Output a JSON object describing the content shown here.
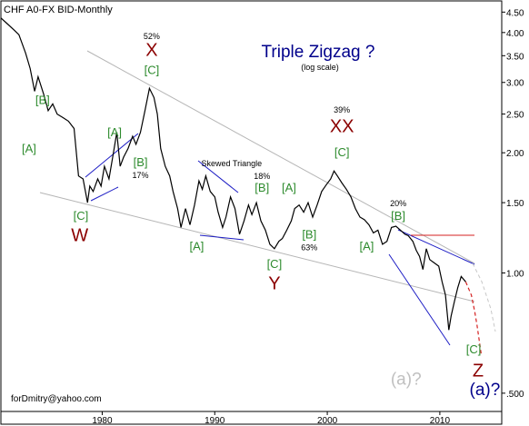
{
  "chart_data": {
    "type": "line",
    "header": "CHF A0-FX BID-Monthly",
    "title": "Triple Zigzag ?",
    "subtitle": "(log scale)",
    "footer": "forDmitry@yahoo.com",
    "y_scale": "log",
    "ylim": [
      0.45,
      4.8
    ],
    "xlim": [
      1971.0,
      2015.5
    ],
    "y_ticks": [
      {
        "v": 4.5,
        "label": "4.50"
      },
      {
        "v": 4.0,
        "label": "4.00"
      },
      {
        "v": 3.5,
        "label": "3.50"
      },
      {
        "v": 3.0,
        "label": "3.00"
      },
      {
        "v": 2.5,
        "label": "2.50"
      },
      {
        "v": 2.0,
        "label": "2.00"
      },
      {
        "v": 1.5,
        "label": "1.50"
      },
      {
        "v": 1.0,
        "label": "1.00"
      },
      {
        "v": 0.5,
        "label": ".500"
      }
    ],
    "x_ticks": [
      {
        "v": 1980,
        "label": "1980"
      },
      {
        "v": 1990,
        "label": "1990"
      },
      {
        "v": 2000,
        "label": "2000"
      },
      {
        "v": 2010,
        "label": "2010"
      }
    ],
    "series": [
      {
        "color": "#000000",
        "points": [
          [
            1971.0,
            4.35
          ],
          [
            1971.6,
            4.2
          ],
          [
            1972.2,
            4.05
          ],
          [
            1972.6,
            3.95
          ],
          [
            1973.2,
            3.55
          ],
          [
            1973.6,
            3.25
          ],
          [
            1974.0,
            2.85
          ],
          [
            1974.3,
            3.1
          ],
          [
            1974.8,
            2.8
          ],
          [
            1975.2,
            2.55
          ],
          [
            1975.6,
            2.65
          ],
          [
            1976.0,
            2.5
          ],
          [
            1976.5,
            2.45
          ],
          [
            1977.0,
            2.4
          ],
          [
            1977.5,
            2.3
          ],
          [
            1977.9,
            1.75
          ],
          [
            1978.3,
            1.72
          ],
          [
            1978.7,
            1.5
          ],
          [
            1978.9,
            1.65
          ],
          [
            1979.2,
            1.6
          ],
          [
            1979.6,
            1.72
          ],
          [
            1979.9,
            1.65
          ],
          [
            1980.2,
            1.85
          ],
          [
            1980.6,
            1.72
          ],
          [
            1981.0,
            2.0
          ],
          [
            1981.3,
            2.25
          ],
          [
            1981.6,
            1.85
          ],
          [
            1981.9,
            1.95
          ],
          [
            1982.3,
            2.05
          ],
          [
            1982.7,
            2.2
          ],
          [
            1983.0,
            2.1
          ],
          [
            1983.4,
            2.25
          ],
          [
            1983.8,
            2.55
          ],
          [
            1984.2,
            2.9
          ],
          [
            1984.6,
            2.75
          ],
          [
            1984.9,
            2.5
          ],
          [
            1985.2,
            2.05
          ],
          [
            1985.6,
            1.85
          ],
          [
            1986.0,
            1.75
          ],
          [
            1986.3,
            1.6
          ],
          [
            1986.7,
            1.45
          ],
          [
            1987.0,
            1.3
          ],
          [
            1987.4,
            1.45
          ],
          [
            1987.8,
            1.32
          ],
          [
            1988.2,
            1.48
          ],
          [
            1988.6,
            1.7
          ],
          [
            1988.9,
            1.62
          ],
          [
            1989.2,
            1.75
          ],
          [
            1989.6,
            1.6
          ],
          [
            1990.0,
            1.55
          ],
          [
            1990.3,
            1.42
          ],
          [
            1990.7,
            1.3
          ],
          [
            1991.0,
            1.38
          ],
          [
            1991.4,
            1.55
          ],
          [
            1991.8,
            1.45
          ],
          [
            1992.2,
            1.25
          ],
          [
            1992.6,
            1.35
          ],
          [
            1993.0,
            1.48
          ],
          [
            1993.3,
            1.4
          ],
          [
            1993.7,
            1.5
          ],
          [
            1994.1,
            1.35
          ],
          [
            1994.5,
            1.28
          ],
          [
            1994.9,
            1.18
          ],
          [
            1995.3,
            1.15
          ],
          [
            1995.7,
            1.2
          ],
          [
            1996.0,
            1.22
          ],
          [
            1996.4,
            1.28
          ],
          [
            1996.8,
            1.35
          ],
          [
            1997.1,
            1.45
          ],
          [
            1997.5,
            1.48
          ],
          [
            1997.9,
            1.42
          ],
          [
            1998.3,
            1.5
          ],
          [
            1998.7,
            1.38
          ],
          [
            1999.1,
            1.48
          ],
          [
            1999.5,
            1.6
          ],
          [
            1999.9,
            1.66
          ],
          [
            2000.3,
            1.72
          ],
          [
            2000.6,
            1.8
          ],
          [
            2000.9,
            1.75
          ],
          [
            2001.3,
            1.68
          ],
          [
            2001.7,
            1.62
          ],
          [
            2002.1,
            1.55
          ],
          [
            2002.5,
            1.45
          ],
          [
            2002.9,
            1.38
          ],
          [
            2003.3,
            1.36
          ],
          [
            2003.7,
            1.32
          ],
          [
            2004.1,
            1.26
          ],
          [
            2004.5,
            1.28
          ],
          [
            2004.9,
            1.18
          ],
          [
            2005.3,
            1.2
          ],
          [
            2005.7,
            1.3
          ],
          [
            2006.1,
            1.31
          ],
          [
            2006.5,
            1.28
          ],
          [
            2006.9,
            1.25
          ],
          [
            2007.2,
            1.24
          ],
          [
            2007.6,
            1.2
          ],
          [
            2007.9,
            1.14
          ],
          [
            2008.2,
            1.1
          ],
          [
            2008.5,
            1.02
          ],
          [
            2008.8,
            1.15
          ],
          [
            2009.1,
            1.08
          ],
          [
            2009.5,
            1.06
          ],
          [
            2009.9,
            1.04
          ],
          [
            2010.2,
            0.95
          ],
          [
            2010.5,
            0.88
          ],
          [
            2010.8,
            0.72
          ],
          [
            2011.0,
            0.78
          ],
          [
            2011.3,
            0.85
          ],
          [
            2011.6,
            0.92
          ],
          [
            2011.9,
            0.98
          ],
          [
            2012.3,
            0.95
          ]
        ]
      }
    ],
    "projection_points": [
      [
        2012.3,
        0.95
      ],
      [
        2012.8,
        0.88
      ],
      [
        2013.1,
        0.8
      ],
      [
        2013.3,
        0.74
      ],
      [
        2013.7,
        0.62
      ]
    ],
    "wave_labels": [
      {
        "text": "[B]",
        "x": 1974.7,
        "y": 2.65,
        "color": "#2e8b2e"
      },
      {
        "text": "[A]",
        "x": 1973.5,
        "y": 2.0,
        "color": "#2e8b2e"
      },
      {
        "text": "[C]",
        "x": 1978.1,
        "y": 1.36,
        "color": "#2e8b2e"
      },
      {
        "text": "W",
        "x": 1978.0,
        "y": 1.2,
        "color": "#8b0000"
      },
      {
        "text": "[A]",
        "x": 1981.1,
        "y": 2.2,
        "color": "#2e8b2e"
      },
      {
        "text": "[B]",
        "x": 1983.4,
        "y": 1.85,
        "color": "#2e8b2e"
      },
      {
        "text": "17%",
        "x": 1983.4,
        "y": 1.73,
        "color": "#000000"
      },
      {
        "text": "52%",
        "x": 1984.4,
        "y": 3.85,
        "color": "#000000"
      },
      {
        "text": "X",
        "x": 1984.4,
        "y": 3.5,
        "color": "#8b0000"
      },
      {
        "text": "[C]",
        "x": 1984.4,
        "y": 3.15,
        "color": "#2e8b2e"
      },
      {
        "text": "Skewed Triangle",
        "x": 1991.5,
        "y": 1.85,
        "color": "#000000"
      },
      {
        "text": "18%",
        "x": 1994.2,
        "y": 1.72,
        "color": "#000000"
      },
      {
        "text": "[B]",
        "x": 1994.2,
        "y": 1.6,
        "color": "#2e8b2e"
      },
      {
        "text": "[A]",
        "x": 1988.4,
        "y": 1.14,
        "color": "#2e8b2e"
      },
      {
        "text": "[A]",
        "x": 1996.6,
        "y": 1.6,
        "color": "#2e8b2e"
      },
      {
        "text": "[B]",
        "x": 1998.4,
        "y": 1.22,
        "color": "#2e8b2e"
      },
      {
        "text": "63%",
        "x": 1998.4,
        "y": 1.14,
        "color": "#000000"
      },
      {
        "text": "[C]",
        "x": 1995.3,
        "y": 1.03,
        "color": "#2e8b2e"
      },
      {
        "text": "Y",
        "x": 1995.3,
        "y": 0.91,
        "color": "#8b0000"
      },
      {
        "text": "39%",
        "x": 2001.3,
        "y": 2.52,
        "color": "#000000"
      },
      {
        "text": "XX",
        "x": 2001.3,
        "y": 2.25,
        "color": "#8b0000"
      },
      {
        "text": "[C]",
        "x": 2001.3,
        "y": 1.96,
        "color": "#2e8b2e"
      },
      {
        "text": "20%",
        "x": 2006.3,
        "y": 1.47,
        "color": "#000000"
      },
      {
        "text": "[B]",
        "x": 2006.3,
        "y": 1.36,
        "color": "#2e8b2e"
      },
      {
        "text": "[A]",
        "x": 2003.5,
        "y": 1.14,
        "color": "#2e8b2e"
      },
      {
        "text": "[C]",
        "x": 2013.0,
        "y": 0.63,
        "color": "#2e8b2e"
      },
      {
        "text": "Z",
        "x": 2013.4,
        "y": 0.55,
        "color": "#8b0000"
      },
      {
        "text": "(a)?",
        "x": 2007.0,
        "y": 0.525,
        "color": "#c0c0c0"
      },
      {
        "text": "(a)?",
        "x": 2014.0,
        "y": 0.495,
        "color": "#00008b"
      }
    ]
  }
}
